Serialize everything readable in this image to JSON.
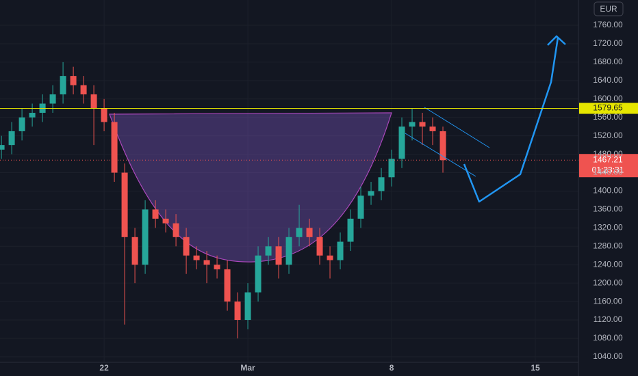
{
  "chart_data": {
    "type": "candlestick",
    "currency": "EUR",
    "x": [
      -5,
      -4.5,
      -4,
      -3.5,
      -3,
      -2.5,
      -2,
      -1.5,
      -1,
      -0.5,
      0,
      0.5,
      1,
      1.5,
      2,
      2.5,
      3,
      3.5,
      4,
      4.5,
      5,
      5.5,
      6,
      6.5,
      7,
      7.5,
      8,
      8.5,
      9,
      9.5,
      10,
      10.5,
      11,
      11.5,
      12,
      12.5,
      13,
      13.5,
      14,
      14.5,
      15,
      15.5,
      16,
      16.5
    ],
    "open": [
      1490,
      1500,
      1530,
      1560,
      1570,
      1590,
      1610,
      1650,
      1630,
      1610,
      1580,
      1550,
      1440,
      1300,
      1240,
      1360,
      1340,
      1330,
      1300,
      1260,
      1250,
      1240,
      1230,
      1160,
      1120,
      1180,
      1260,
      1280,
      1240,
      1300,
      1320,
      1300,
      1260,
      1250,
      1290,
      1340,
      1390,
      1400,
      1430,
      1470,
      1540,
      1550,
      1540,
      1530
    ],
    "high": [
      1520,
      1550,
      1580,
      1590,
      1610,
      1630,
      1680,
      1670,
      1650,
      1630,
      1600,
      1570,
      1460,
      1320,
      1380,
      1380,
      1360,
      1350,
      1320,
      1280,
      1270,
      1260,
      1250,
      1180,
      1200,
      1280,
      1300,
      1300,
      1320,
      1370,
      1340,
      1320,
      1280,
      1310,
      1360,
      1410,
      1420,
      1450,
      1490,
      1560,
      1580,
      1570,
      1560,
      1540
    ],
    "low": [
      1470,
      1480,
      1510,
      1540,
      1550,
      1570,
      1590,
      1610,
      1590,
      1500,
      1530,
      1420,
      1110,
      1200,
      1220,
      1320,
      1310,
      1280,
      1220,
      1230,
      1200,
      1210,
      1140,
      1080,
      1100,
      1160,
      1240,
      1210,
      1220,
      1280,
      1280,
      1240,
      1210,
      1230,
      1270,
      1320,
      1370,
      1380,
      1410,
      1450,
      1510,
      1500,
      1500,
      1440
    ],
    "close": [
      1500,
      1530,
      1560,
      1570,
      1590,
      1610,
      1650,
      1630,
      1610,
      1580,
      1550,
      1440,
      1300,
      1240,
      1360,
      1340,
      1330,
      1300,
      1260,
      1250,
      1240,
      1230,
      1160,
      1120,
      1180,
      1260,
      1280,
      1240,
      1300,
      1320,
      1300,
      1260,
      1250,
      1290,
      1340,
      1390,
      1400,
      1430,
      1470,
      1540,
      1550,
      1540,
      1530,
      1467.21
    ],
    "up_color": "#26a69a",
    "down_color": "#ef5350",
    "horizontal_line": 1579.65,
    "horizontal_line_color": "#e6e600",
    "countdown": "01:23:31",
    "xlim": [
      -5.07,
      23.1
    ],
    "xticks": [
      {
        "value": 0,
        "label": "22"
      },
      {
        "value": 7,
        "label": "Mar"
      },
      {
        "value": 14,
        "label": "8"
      },
      {
        "value": 21,
        "label": "15"
      }
    ],
    "ylim": [
      1028,
      1815
    ],
    "yticks": [
      {
        "value": 1040,
        "label": "1040.00"
      },
      {
        "value": 1080,
        "label": "1080.00"
      },
      {
        "value": 1120,
        "label": "1120.00"
      },
      {
        "value": 1160,
        "label": "1160.00"
      },
      {
        "value": 1200,
        "label": "1200.00"
      },
      {
        "value": 1240,
        "label": "1240.00"
      },
      {
        "value": 1280,
        "label": "1280.00"
      },
      {
        "value": 1320,
        "label": "1320.00"
      },
      {
        "value": 1360,
        "label": "1360.00"
      },
      {
        "value": 1400,
        "label": "1400.00"
      },
      {
        "value": 1440,
        "label": "1440.00"
      },
      {
        "value": 1480,
        "label": "1480.00"
      },
      {
        "value": 1520,
        "label": "1520.00"
      },
      {
        "value": 1560,
        "label": "1560.00"
      },
      {
        "value": 1600,
        "label": "1600.00"
      },
      {
        "value": 1640,
        "label": "1640.00"
      },
      {
        "value": 1680,
        "label": "1680.00"
      },
      {
        "value": 1720,
        "label": "1720.00"
      },
      {
        "value": 1760,
        "label": "1760.00"
      }
    ],
    "grid": true
  }
}
